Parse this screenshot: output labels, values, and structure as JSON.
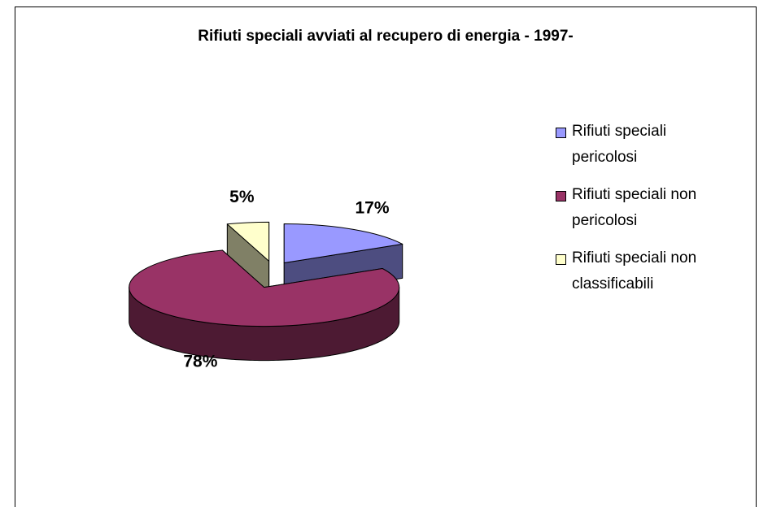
{
  "chart_data": {
    "type": "pie3d",
    "title": "Rifiuti speciali avviati al recupero di energia - 1997-",
    "categories": [
      "Rifiuti speciali pericolosi",
      "Rifiuti speciali non pericolosi",
      "Rifiuti speciali non classificabili"
    ],
    "values": [
      17,
      78,
      5
    ],
    "value_labels": [
      "17%",
      "78%",
      "5%"
    ],
    "colors": [
      "#9999ff",
      "#993366",
      "#ffffcc"
    ],
    "legend": "right"
  }
}
